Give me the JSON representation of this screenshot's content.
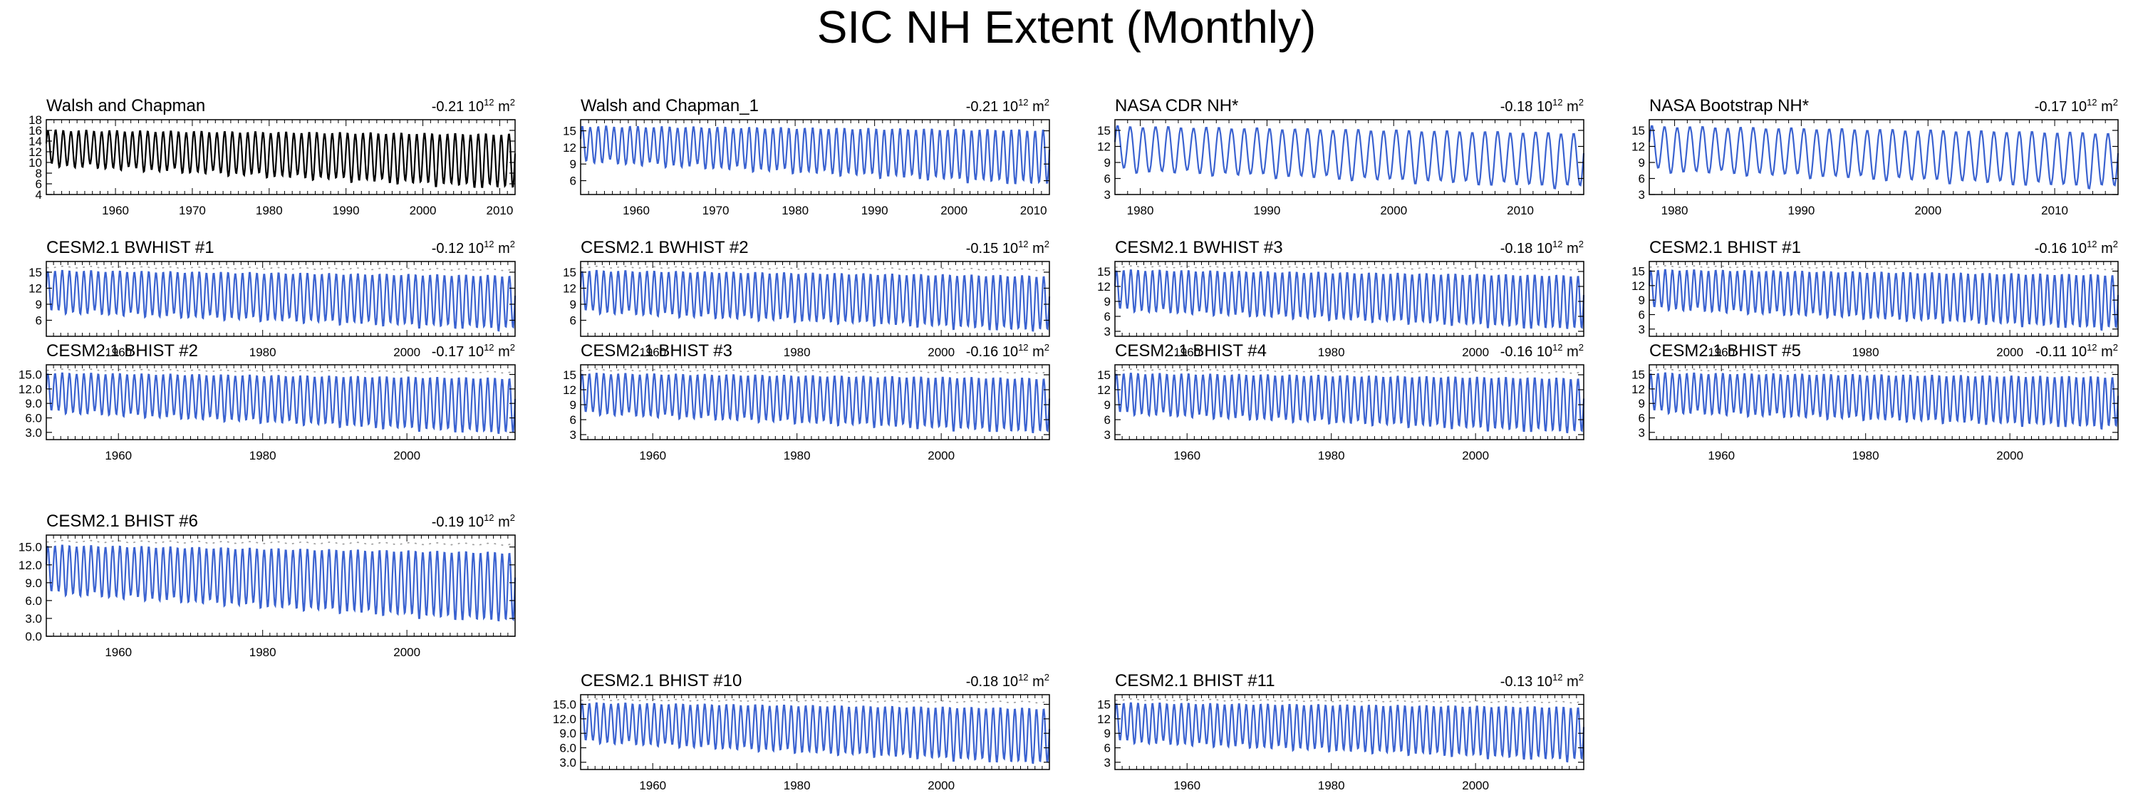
{
  "title": "SIC NH Extent (Monthly)",
  "colors": {
    "obs": "#000000",
    "model": "#3a62d0",
    "ref": "#9e9e9e",
    "axis": "#000000"
  },
  "chart_data": [
    {
      "type": "line",
      "title": "Walsh and Chapman",
      "trend": "-0.21",
      "units_pre": "10",
      "units_exp": "12",
      "units_post": "m",
      "units_post_exp": "2",
      "xlim": [
        1951,
        2012
      ],
      "ylim": [
        4,
        18
      ],
      "yticks": [
        "18",
        "16",
        "14",
        "12",
        "10",
        "8",
        "6",
        "4"
      ],
      "xticks": [
        "1960",
        "1970",
        "1980",
        "1990",
        "2000",
        "2010"
      ],
      "series": [
        {
          "name": "observed",
          "color": "obs",
          "base_max": 16.0,
          "base_min": 9.5,
          "max_trend": -0.012,
          "min_trend": -0.07,
          "min_floor": 4.5
        }
      ]
    },
    {
      "type": "line",
      "title": "Walsh and Chapman_1",
      "trend": "-0.21",
      "units_pre": "10",
      "units_exp": "12",
      "units_post": "m",
      "units_post_exp": "2",
      "xlim": [
        1953,
        2012
      ],
      "ylim": [
        3.5,
        17
      ],
      "yticks": [
        "15",
        "12",
        "9",
        "6"
      ],
      "xticks": [
        "1960",
        "1970",
        "1980",
        "1990",
        "2000",
        "2010"
      ],
      "series": [
        {
          "name": "observed",
          "color": "model",
          "base_max": 15.8,
          "base_min": 9.5,
          "max_trend": -0.012,
          "min_trend": -0.07,
          "min_floor": 4.5
        }
      ]
    },
    {
      "type": "line",
      "title": "NASA CDR NH*",
      "trend": "-0.18",
      "units_pre": "10",
      "units_exp": "12",
      "units_post": "m",
      "units_post_exp": "2",
      "xlim": [
        1978,
        2015
      ],
      "ylim": [
        3,
        17
      ],
      "yticks": [
        "15",
        "12",
        "9",
        "6",
        "3"
      ],
      "xticks": [
        "1980",
        "1990",
        "2000",
        "2010"
      ],
      "series": [
        {
          "name": "observed",
          "color": "model",
          "base_max": 15.8,
          "base_min": 7.5,
          "max_trend": -0.035,
          "min_trend": -0.085,
          "min_floor": 3.8
        }
      ]
    },
    {
      "type": "line",
      "title": "NASA Bootstrap NH*",
      "trend": "-0.17",
      "units_pre": "10",
      "units_exp": "12",
      "units_post": "m",
      "units_post_exp": "2",
      "xlim": [
        1978,
        2015
      ],
      "ylim": [
        3,
        17
      ],
      "yticks": [
        "15",
        "12",
        "9",
        "6",
        "3"
      ],
      "xticks": [
        "1980",
        "1990",
        "2000",
        "2010"
      ],
      "series": [
        {
          "name": "observed",
          "color": "model",
          "base_max": 15.8,
          "base_min": 7.5,
          "max_trend": -0.035,
          "min_trend": -0.085,
          "min_floor": 3.8
        }
      ]
    },
    {
      "type": "line",
      "title": "CESM2.1 BWHIST #1",
      "trend": "-0.12",
      "units_pre": "10",
      "units_exp": "12",
      "units_post": "m",
      "units_post_exp": "2",
      "xlim": [
        1950,
        2015
      ],
      "ylim": [
        3,
        17
      ],
      "yticks": [
        "15",
        "12",
        "9",
        "6"
      ],
      "xticks": [
        "1960",
        "1980",
        "2000"
      ],
      "series": [
        {
          "name": "model",
          "color": "model",
          "base_max": 15.3,
          "base_min": 7.6,
          "max_trend": -0.015,
          "min_trend": -0.05,
          "min_floor": 3.6
        },
        {
          "name": "reference",
          "color": "ref",
          "base_max": 16.0,
          "max_trend": -0.008
        }
      ]
    },
    {
      "type": "line",
      "title": "CESM2.1 BWHIST #2",
      "trend": "-0.15",
      "units_pre": "10",
      "units_exp": "12",
      "units_post": "m",
      "units_post_exp": "2",
      "xlim": [
        1950,
        2015
      ],
      "ylim": [
        3,
        17
      ],
      "yticks": [
        "15",
        "12",
        "9",
        "6"
      ],
      "xticks": [
        "1960",
        "1980",
        "2000"
      ],
      "series": [
        {
          "name": "model",
          "color": "model",
          "base_max": 15.3,
          "base_min": 7.6,
          "max_trend": -0.016,
          "min_trend": -0.055,
          "min_floor": 3.6
        },
        {
          "name": "reference",
          "color": "ref",
          "base_max": 16.0,
          "max_trend": -0.008
        }
      ]
    },
    {
      "type": "line",
      "title": "CESM2.1 BWHIST #3",
      "trend": "-0.18",
      "units_pre": "10",
      "units_exp": "12",
      "units_post": "m",
      "units_post_exp": "2",
      "xlim": [
        1950,
        2015
      ],
      "ylim": [
        2,
        17
      ],
      "yticks": [
        "15",
        "12",
        "9",
        "6",
        "3"
      ],
      "xticks": [
        "1960",
        "1980",
        "2000"
      ],
      "series": [
        {
          "name": "model",
          "color": "model",
          "base_max": 15.3,
          "base_min": 7.3,
          "max_trend": -0.018,
          "min_trend": -0.06,
          "min_floor": 3.2
        },
        {
          "name": "reference",
          "color": "ref",
          "base_max": 16.0,
          "max_trend": -0.008
        }
      ]
    },
    {
      "type": "line",
      "title": "CESM2.1 BHIST #1",
      "trend": "-0.16",
      "units_pre": "10",
      "units_exp": "12",
      "units_post": "m",
      "units_post_exp": "2",
      "xlim": [
        1950,
        2015
      ],
      "ylim": [
        1.5,
        17
      ],
      "yticks": [
        "15",
        "12",
        "9",
        "6",
        "3"
      ],
      "xticks": [
        "1960",
        "1980",
        "2000"
      ],
      "series": [
        {
          "name": "model",
          "color": "model",
          "base_max": 15.3,
          "base_min": 7.3,
          "max_trend": -0.017,
          "min_trend": -0.065,
          "min_floor": 2.6
        },
        {
          "name": "reference",
          "color": "ref",
          "base_max": 16.0,
          "max_trend": -0.008
        }
      ]
    },
    {
      "type": "line",
      "title": "CESM2.1 BHIST #2",
      "trend": "-0.17",
      "units_pre": "10",
      "units_exp": "12",
      "units_post": "m",
      "units_post_exp": "2",
      "xlim": [
        1950,
        2015
      ],
      "ylim": [
        1.5,
        17
      ],
      "yticks": [
        "15.0",
        "12.0",
        "9.0",
        "6.0",
        "3.0"
      ],
      "xticks": [
        "1960",
        "1980",
        "2000"
      ],
      "series": [
        {
          "name": "model",
          "color": "model",
          "base_max": 15.3,
          "base_min": 7.3,
          "max_trend": -0.017,
          "min_trend": -0.07,
          "min_floor": 2.4
        },
        {
          "name": "reference",
          "color": "ref",
          "base_max": 16.0,
          "max_trend": -0.008
        }
      ]
    },
    {
      "type": "line",
      "title": "CESM2.1 BHIST #3",
      "trend": "-0.16",
      "units_pre": "10",
      "units_exp": "12",
      "units_post": "m",
      "units_post_exp": "2",
      "xlim": [
        1950,
        2015
      ],
      "ylim": [
        2,
        17
      ],
      "yticks": [
        "15",
        "12",
        "9",
        "6",
        "3"
      ],
      "xticks": [
        "1960",
        "1980",
        "2000"
      ],
      "series": [
        {
          "name": "model",
          "color": "model",
          "base_max": 15.3,
          "base_min": 7.3,
          "max_trend": -0.016,
          "min_trend": -0.06,
          "min_floor": 3.0
        },
        {
          "name": "reference",
          "color": "ref",
          "base_max": 16.0,
          "max_trend": -0.008
        }
      ]
    },
    {
      "type": "line",
      "title": "CESM2.1 BHIST #4",
      "trend": "-0.16",
      "units_pre": "10",
      "units_exp": "12",
      "units_post": "m",
      "units_post_exp": "2",
      "xlim": [
        1950,
        2015
      ],
      "ylim": [
        2,
        17
      ],
      "yticks": [
        "15",
        "12",
        "9",
        "6",
        "3"
      ],
      "xticks": [
        "1960",
        "1980",
        "2000"
      ],
      "series": [
        {
          "name": "model",
          "color": "model",
          "base_max": 15.3,
          "base_min": 7.3,
          "max_trend": -0.016,
          "min_trend": -0.06,
          "min_floor": 3.0
        },
        {
          "name": "reference",
          "color": "ref",
          "base_max": 16.0,
          "max_trend": -0.008
        }
      ]
    },
    {
      "type": "line",
      "title": "CESM2.1 BHIST #5",
      "trend": "-0.11",
      "units_pre": "10",
      "units_exp": "12",
      "units_post": "m",
      "units_post_exp": "2",
      "xlim": [
        1950,
        2015
      ],
      "ylim": [
        1.5,
        17
      ],
      "yticks": [
        "15",
        "12",
        "9",
        "6",
        "3"
      ],
      "xticks": [
        "1960",
        "1980",
        "2000"
      ],
      "series": [
        {
          "name": "model",
          "color": "model",
          "base_max": 15.3,
          "base_min": 7.3,
          "max_trend": -0.013,
          "min_trend": -0.05,
          "min_floor": 2.6
        },
        {
          "name": "reference",
          "color": "ref",
          "base_max": 16.0,
          "max_trend": -0.008
        }
      ]
    },
    {
      "type": "line",
      "title": "CESM2.1 BHIST #6",
      "trend": "-0.19",
      "units_pre": "10",
      "units_exp": "12",
      "units_post": "m",
      "units_post_exp": "2",
      "xlim": [
        1950,
        2015
      ],
      "ylim": [
        0,
        17
      ],
      "yticks": [
        "15.0",
        "12.0",
        "9.0",
        "6.0",
        "3.0",
        "0.0"
      ],
      "xticks": [
        "1960",
        "1980",
        "2000"
      ],
      "series": [
        {
          "name": "model",
          "color": "model",
          "base_max": 15.3,
          "base_min": 7.3,
          "max_trend": -0.019,
          "min_trend": -0.075,
          "min_floor": 2.2
        },
        {
          "name": "reference",
          "color": "ref",
          "base_max": 16.0,
          "max_trend": -0.008
        }
      ]
    },
    {
      "type": "line",
      "title": "CESM2.1 BHIST #10",
      "trend": "-0.18",
      "units_pre": "10",
      "units_exp": "12",
      "units_post": "m",
      "units_post_exp": "2",
      "xlim": [
        1950,
        2015
      ],
      "ylim": [
        1.5,
        17
      ],
      "yticks": [
        "15.0",
        "12.0",
        "9.0",
        "6.0",
        "3.0"
      ],
      "xticks": [
        "1960",
        "1980",
        "2000"
      ],
      "series": [
        {
          "name": "model",
          "color": "model",
          "base_max": 15.3,
          "base_min": 7.3,
          "max_trend": -0.018,
          "min_trend": -0.07,
          "min_floor": 2.4
        },
        {
          "name": "reference",
          "color": "ref",
          "base_max": 16.0,
          "max_trend": -0.008
        }
      ]
    },
    {
      "type": "line",
      "title": "CESM2.1 BHIST #11",
      "trend": "-0.13",
      "units_pre": "10",
      "units_exp": "12",
      "units_post": "m",
      "units_post_exp": "2",
      "xlim": [
        1950,
        2015
      ],
      "ylim": [
        1.5,
        17
      ],
      "yticks": [
        "15",
        "12",
        "9",
        "6",
        "3"
      ],
      "xticks": [
        "1960",
        "1980",
        "2000"
      ],
      "series": [
        {
          "name": "model",
          "color": "model",
          "base_max": 15.3,
          "base_min": 7.3,
          "max_trend": -0.014,
          "min_trend": -0.06,
          "min_floor": 2.6
        },
        {
          "name": "reference",
          "color": "ref",
          "base_max": 16.0,
          "max_trend": -0.008
        }
      ]
    }
  ]
}
